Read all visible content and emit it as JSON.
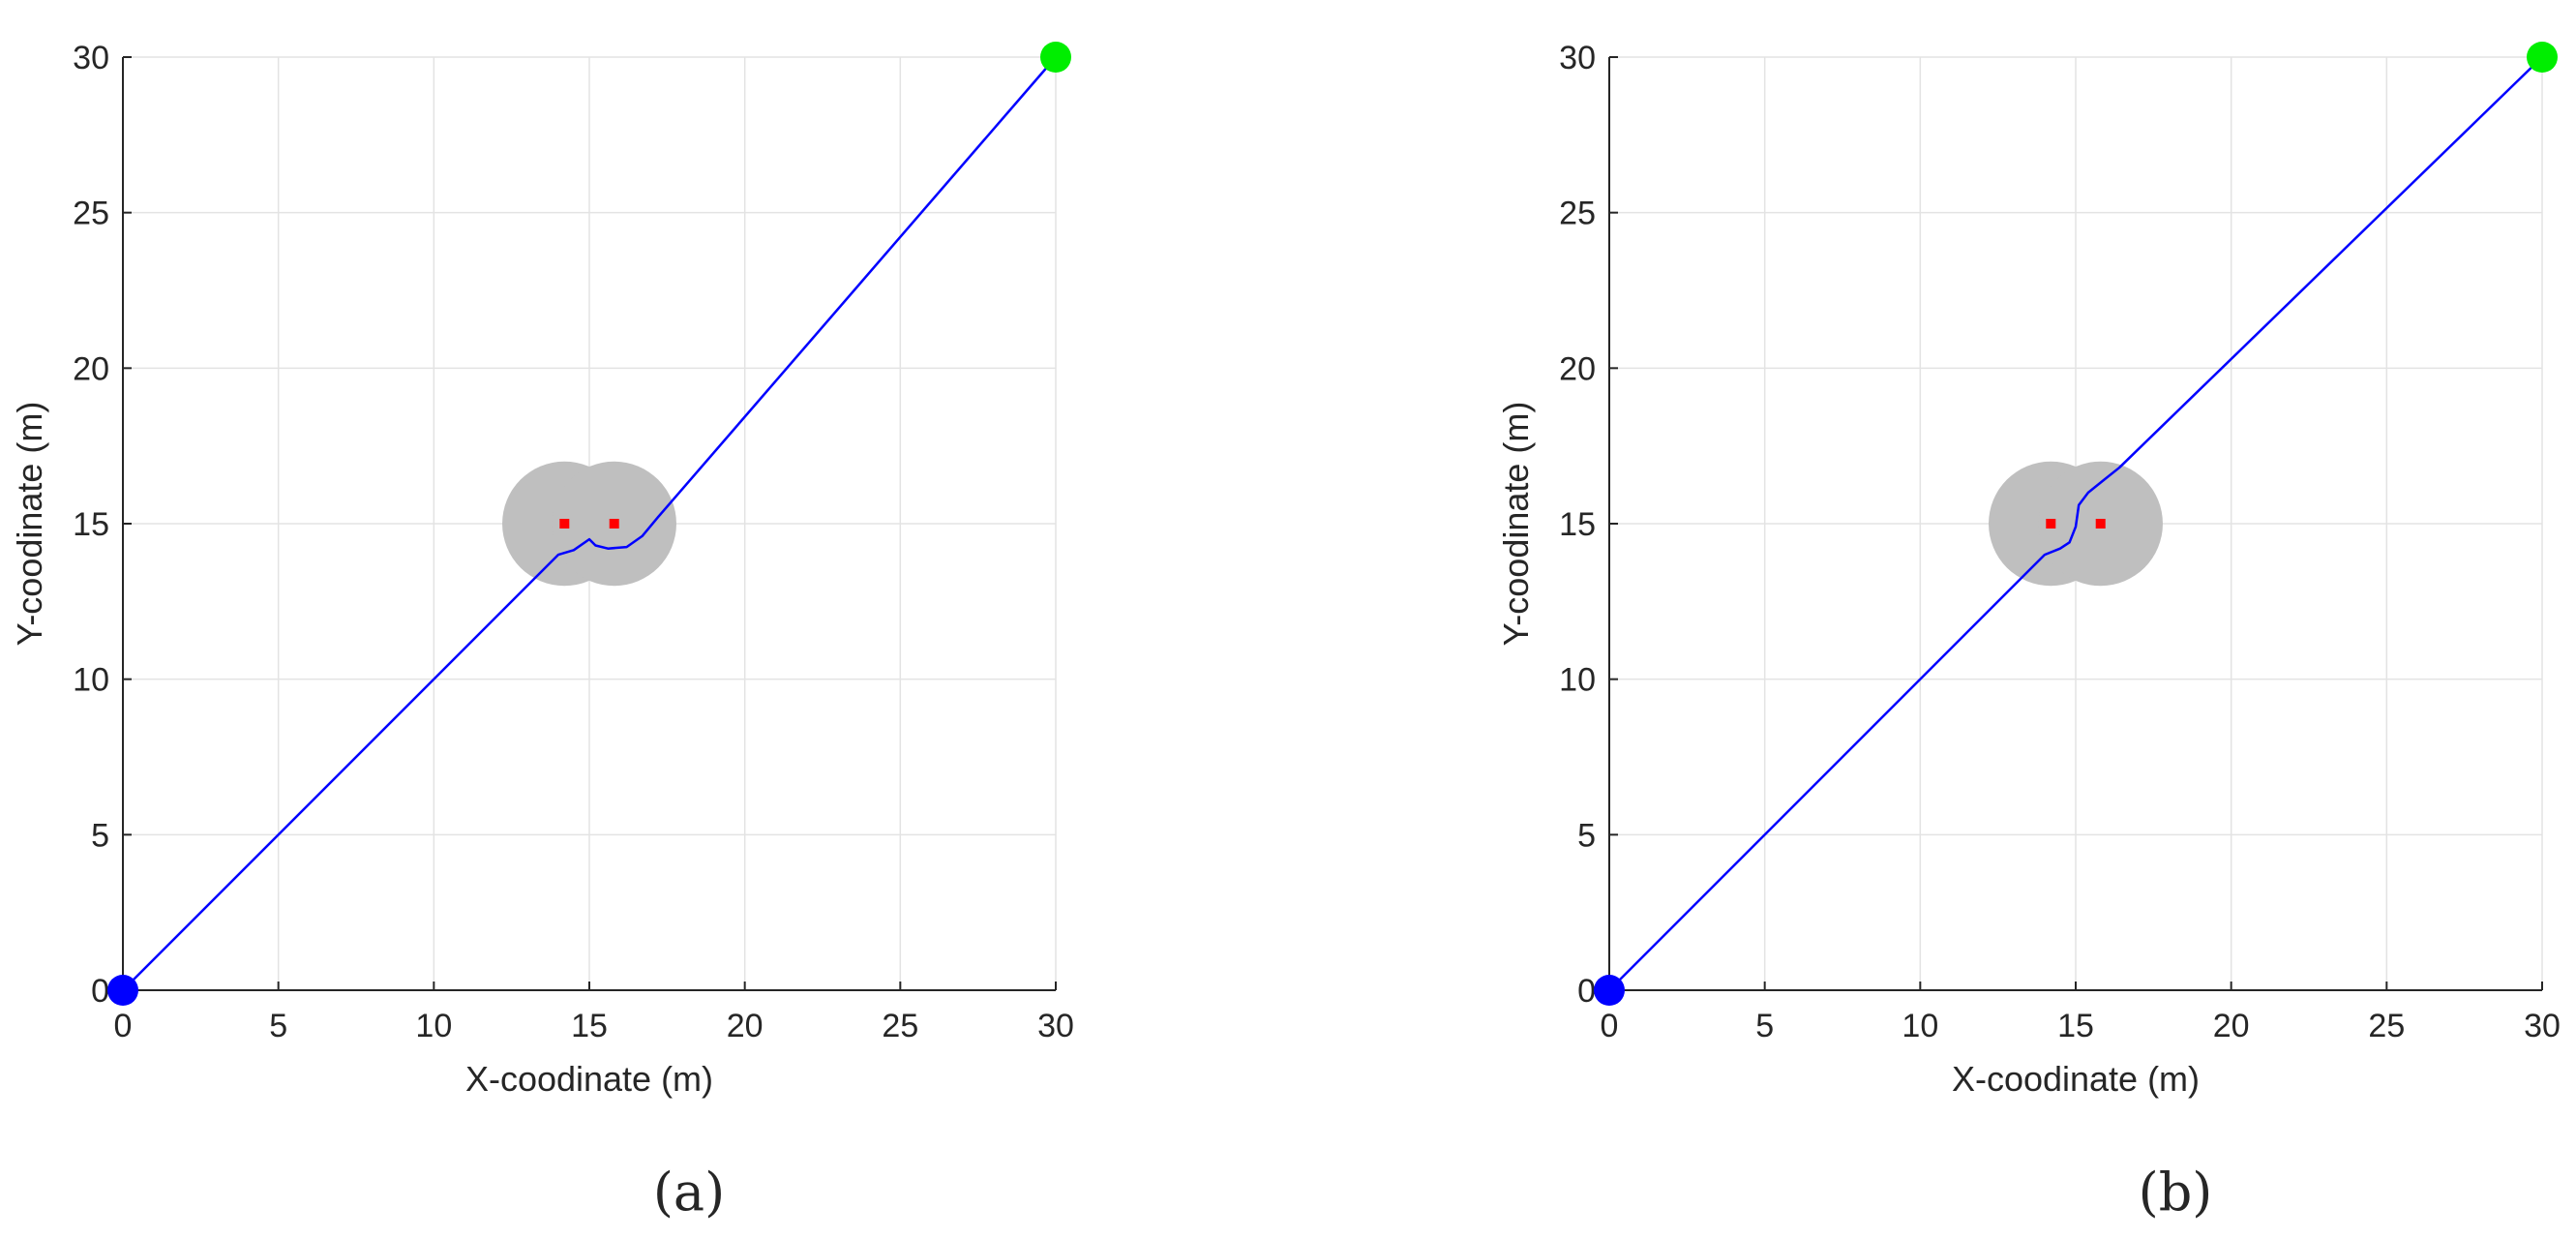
{
  "chart_data": [
    {
      "type": "line",
      "panel_label": "(a)",
      "xlabel": "X-coodinate (m)",
      "ylabel": "Y-coodinate (m)",
      "xlim": [
        0,
        30
      ],
      "ylim": [
        0,
        30
      ],
      "xticks": [
        0,
        5,
        10,
        15,
        20,
        25,
        30
      ],
      "yticks": [
        0,
        5,
        10,
        15,
        20,
        25,
        30
      ],
      "grid": true,
      "start": {
        "x": 0,
        "y": 0,
        "color": "#0000ff"
      },
      "goal": {
        "x": 30,
        "y": 30,
        "color": "#00ee00"
      },
      "obstacles": [
        {
          "x": 14.2,
          "y": 15,
          "radius": 2.0,
          "color": "#ff0000"
        },
        {
          "x": 15.8,
          "y": 15,
          "radius": 2.0,
          "color": "#ff0000"
        }
      ],
      "safety_region_color": "#bfbfbf",
      "series": [
        {
          "color": "#0000ff",
          "points": [
            [
              0,
              0
            ],
            [
              13.6,
              13.6
            ],
            [
              14.0,
              14.0
            ],
            [
              14.5,
              14.15
            ],
            [
              15.0,
              14.5
            ],
            [
              15.2,
              14.3
            ],
            [
              15.6,
              14.2
            ],
            [
              16.2,
              14.25
            ],
            [
              16.7,
              14.6
            ],
            [
              17.2,
              15.2
            ],
            [
              30,
              30
            ]
          ]
        }
      ]
    },
    {
      "type": "line",
      "panel_label": "(b)",
      "xlabel": "X-coodinate (m)",
      "ylabel": "Y-coodinate (m)",
      "xlim": [
        0,
        30
      ],
      "ylim": [
        0,
        30
      ],
      "xticks": [
        0,
        5,
        10,
        15,
        20,
        25,
        30
      ],
      "yticks": [
        0,
        5,
        10,
        15,
        20,
        25,
        30
      ],
      "grid": true,
      "start": {
        "x": 0,
        "y": 0,
        "color": "#0000ff"
      },
      "goal": {
        "x": 30,
        "y": 30,
        "color": "#00ee00"
      },
      "obstacles": [
        {
          "x": 14.2,
          "y": 15,
          "radius": 2.0,
          "color": "#ff0000"
        },
        {
          "x": 15.8,
          "y": 15,
          "radius": 2.0,
          "color": "#ff0000"
        }
      ],
      "safety_region_color": "#bfbfbf",
      "series": [
        {
          "color": "#0000ff",
          "points": [
            [
              0,
              0
            ],
            [
              13.6,
              13.6
            ],
            [
              14.0,
              14.0
            ],
            [
              14.5,
              14.2
            ],
            [
              14.8,
              14.4
            ],
            [
              15.0,
              14.9
            ],
            [
              15.1,
              15.6
            ],
            [
              15.4,
              16.0
            ],
            [
              15.9,
              16.4
            ],
            [
              16.4,
              16.8
            ],
            [
              30,
              30
            ]
          ]
        }
      ]
    }
  ]
}
